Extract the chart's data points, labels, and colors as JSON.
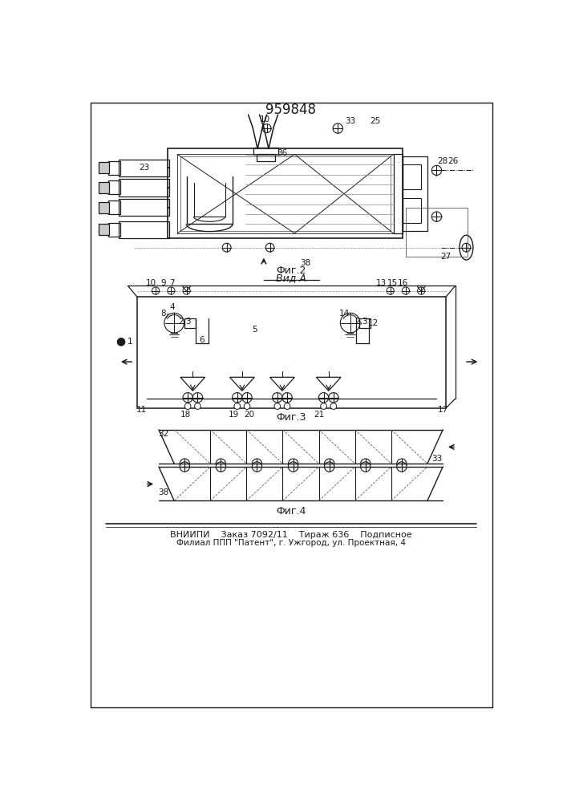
{
  "title": "959848",
  "footer_line1": "ВНИИПИ    Заказ 7092/11    Тираж 636    Подписное",
  "footer_line2": "Филиал ППП \"Патент\", г. Ужгород, ул. Проектная, 4",
  "fig2_label": "Фиг.2",
  "fig3_label": "Фиг.3",
  "fig4_label": "Фиг.4",
  "vid_a_label": "Вид А",
  "bg_color": "#ffffff",
  "line_color": "#1a1a1a",
  "font_size_title": 12,
  "font_size_labels": 9,
  "font_size_num": 7.5,
  "font_size_footer": 8
}
